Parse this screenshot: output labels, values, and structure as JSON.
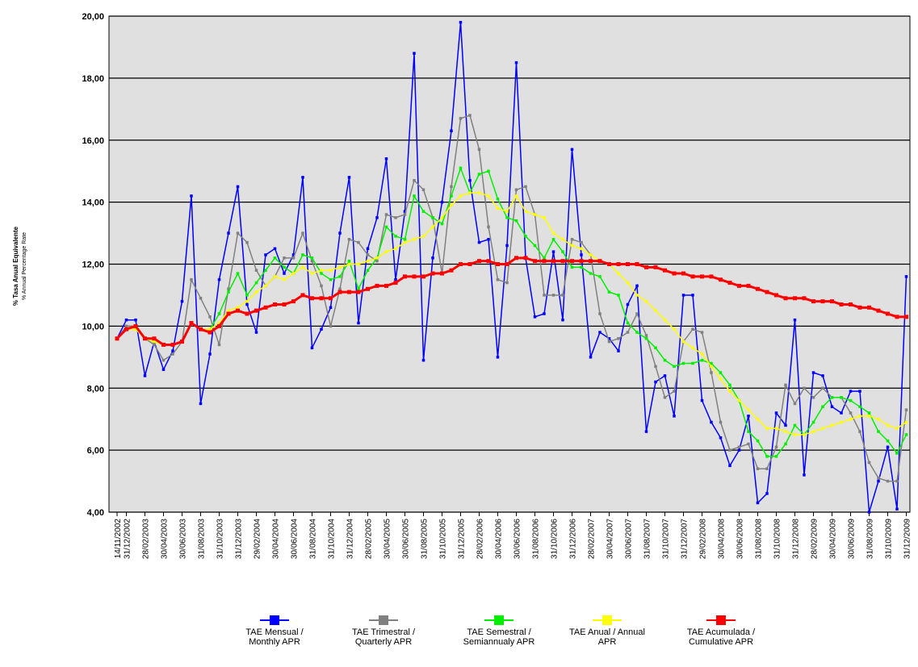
{
  "chart_data": {
    "type": "line",
    "y_label": [
      "% Tasa Anual Equivalente",
      "% Annual Percentage Rate"
    ],
    "categories": [
      "14/11/2002",
      "31/12/2002",
      null,
      "28/02/2003",
      null,
      "30/04/2003",
      null,
      "30/06/2003",
      null,
      "31/08/2003",
      null,
      "31/10/2003",
      null,
      "31/12/2003",
      null,
      "29/02/2004",
      null,
      "30/04/2004",
      null,
      "30/06/2004",
      null,
      "31/08/2004",
      null,
      "31/10/2004",
      null,
      "31/12/2004",
      null,
      "28/02/2005",
      null,
      "30/04/2005",
      null,
      "30/06/2005",
      null,
      "31/08/2005",
      null,
      "31/10/2005",
      null,
      "31/12/2005",
      null,
      "28/02/2006",
      null,
      "30/04/2006",
      null,
      "30/06/2006",
      null,
      "31/08/2006",
      null,
      "31/10/2006",
      null,
      "31/12/2006",
      null,
      "28/02/2007",
      null,
      "30/04/2007",
      null,
      "30/06/2007",
      null,
      "31/08/2007",
      null,
      "31/10/2007",
      null,
      "31/12/2007",
      null,
      "29/02/2008",
      null,
      "30/04/2008",
      null,
      "30/06/2008",
      null,
      "31/08/2008",
      null,
      "31/10/2008",
      null,
      "31/12/2008",
      null,
      "28/02/2009",
      null,
      "30/04/2009",
      null,
      "30/06/2009",
      null,
      "31/08/2009",
      null,
      "31/10/2009",
      null,
      "31/12/2009"
    ],
    "ylim": [
      4,
      20
    ],
    "yticks": [
      {
        "value": 4,
        "label": "4,00"
      },
      {
        "value": 6,
        "label": "6,00"
      },
      {
        "value": 8,
        "label": "8,00"
      },
      {
        "value": 10,
        "label": "10,00"
      },
      {
        "value": 12,
        "label": "12,00"
      },
      {
        "value": 14,
        "label": "14,00"
      },
      {
        "value": 16,
        "label": "16,00"
      },
      {
        "value": 18,
        "label": "18,00"
      },
      {
        "value": 20,
        "label": "20,00"
      }
    ],
    "grid": true,
    "series": [
      {
        "name": "TAE Mensual / Monthly APR",
        "color": "#0000ff",
        "values": [
          9.6,
          10.2,
          10.2,
          8.4,
          9.5,
          8.6,
          9.2,
          10.8,
          14.2,
          7.5,
          9.1,
          11.5,
          13.0,
          14.5,
          10.7,
          9.8,
          12.3,
          12.5,
          11.7,
          12.3,
          14.8,
          9.3,
          9.9,
          10.6,
          13.0,
          14.8,
          10.1,
          12.5,
          13.5,
          15.4,
          11.5,
          13.7,
          18.8,
          8.9,
          12.2,
          14.0,
          16.3,
          19.8,
          14.7,
          12.7,
          12.8,
          9.0,
          12.6,
          18.5,
          12.2,
          10.3,
          10.4,
          12.4,
          10.2,
          15.7,
          12.3,
          9.0,
          9.8,
          9.6,
          9.2,
          10.7,
          11.3,
          6.6,
          8.2,
          8.4,
          7.1,
          11.0,
          11.0,
          7.6,
          6.9,
          6.4,
          5.5,
          6.0,
          7.1,
          4.3,
          4.6,
          7.2,
          6.8,
          10.2,
          5.2,
          8.5,
          8.4,
          7.4,
          7.2,
          7.9,
          7.9,
          4.0,
          5.0,
          6.1,
          4.1,
          11.6
        ]
      },
      {
        "name": "TAE Trimestral / Quarterly APR",
        "color": "#808080",
        "values": [
          9.6,
          10.0,
          10.0,
          9.6,
          9.4,
          8.9,
          9.1,
          9.5,
          11.5,
          10.9,
          10.3,
          9.4,
          11.2,
          13.0,
          12.7,
          11.8,
          11.3,
          11.6,
          12.2,
          12.2,
          13.0,
          12.1,
          11.3,
          10.0,
          11.2,
          12.8,
          12.7,
          12.3,
          12.1,
          13.6,
          13.5,
          13.6,
          14.7,
          14.4,
          13.5,
          11.7,
          14.5,
          16.7,
          16.8,
          15.7,
          13.2,
          11.5,
          11.4,
          14.4,
          14.5,
          13.6,
          11.0,
          11.0,
          11.0,
          12.8,
          12.7,
          12.3,
          10.4,
          9.5,
          9.6,
          9.8,
          10.4,
          9.7,
          8.7,
          7.7,
          7.9,
          9.5,
          9.9,
          9.8,
          8.5,
          6.9,
          6.0,
          6.1,
          6.2,
          5.4,
          5.4,
          6.1,
          8.1,
          7.5,
          8.0,
          7.7,
          8.0,
          7.7,
          7.7,
          7.2,
          6.6,
          5.6,
          5.1,
          5.0,
          5.0,
          7.3
        ]
      },
      {
        "name": "TAE Semestral / Semiannualy APR",
        "color": "#00ee00",
        "values": [
          9.6,
          9.9,
          9.9,
          9.6,
          9.5,
          9.4,
          9.4,
          9.5,
          10.1,
          9.9,
          9.9,
          10.4,
          11.1,
          11.7,
          11.0,
          11.4,
          11.8,
          12.2,
          11.9,
          11.7,
          12.3,
          12.2,
          11.7,
          11.5,
          11.6,
          12.1,
          11.2,
          11.8,
          12.2,
          13.2,
          12.9,
          12.8,
          14.2,
          13.7,
          13.5,
          13.3,
          14.2,
          15.1,
          14.3,
          14.9,
          15.0,
          14.1,
          13.5,
          13.4,
          12.9,
          12.6,
          12.2,
          12.8,
          12.4,
          11.9,
          11.9,
          11.7,
          11.6,
          11.1,
          11.0,
          10.1,
          9.8,
          9.6,
          9.3,
          8.9,
          8.7,
          8.8,
          8.8,
          8.9,
          8.8,
          8.5,
          8.1,
          7.6,
          6.6,
          6.3,
          5.8,
          5.8,
          6.2,
          6.8,
          6.5,
          6.9,
          7.4,
          7.7,
          7.7,
          7.6,
          7.4,
          7.2,
          6.6,
          6.3,
          5.9,
          6.5
        ]
      },
      {
        "name": "TAE Anual / Annual APR",
        "color": "#ffff00",
        "values": [
          9.6,
          9.9,
          9.9,
          9.6,
          9.5,
          9.4,
          9.4,
          9.5,
          10.1,
          9.9,
          9.9,
          10.1,
          10.5,
          10.6,
          10.8,
          11.1,
          11.3,
          11.6,
          11.5,
          11.7,
          11.9,
          11.7,
          11.8,
          11.8,
          11.9,
          12.0,
          12.0,
          12.1,
          12.2,
          12.4,
          12.5,
          12.7,
          12.8,
          12.9,
          13.2,
          13.5,
          13.9,
          14.2,
          14.3,
          14.3,
          14.2,
          13.8,
          13.7,
          14.2,
          13.7,
          13.6,
          13.5,
          13.0,
          12.8,
          12.6,
          12.5,
          12.3,
          12.1,
          12.0,
          11.7,
          11.4,
          11.0,
          10.8,
          10.5,
          10.2,
          9.9,
          9.5,
          9.3,
          9.1,
          8.7,
          8.3,
          7.9,
          7.6,
          7.3,
          7.0,
          6.7,
          6.7,
          6.6,
          6.5,
          6.5,
          6.6,
          6.7,
          6.8,
          6.9,
          7.0,
          7.1,
          7.1,
          7.0,
          6.8,
          6.7,
          6.9
        ]
      },
      {
        "name": "TAE Acumulada / Cumulative APR",
        "color": "#ff0000",
        "values": [
          9.6,
          9.9,
          10.0,
          9.6,
          9.6,
          9.4,
          9.4,
          9.5,
          10.1,
          9.9,
          9.8,
          10.0,
          10.4,
          10.5,
          10.4,
          10.5,
          10.6,
          10.7,
          10.7,
          10.8,
          11.0,
          10.9,
          10.9,
          10.9,
          11.1,
          11.1,
          11.1,
          11.2,
          11.3,
          11.3,
          11.4,
          11.6,
          11.6,
          11.6,
          11.7,
          11.7,
          11.8,
          12.0,
          12.0,
          12.1,
          12.1,
          12.0,
          12.0,
          12.2,
          12.2,
          12.1,
          12.1,
          12.1,
          12.1,
          12.1,
          12.1,
          12.1,
          12.1,
          12.0,
          12.0,
          12.0,
          12.0,
          11.9,
          11.9,
          11.8,
          11.7,
          11.7,
          11.6,
          11.6,
          11.6,
          11.5,
          11.4,
          11.3,
          11.3,
          11.2,
          11.1,
          11.0,
          10.9,
          10.9,
          10.9,
          10.8,
          10.8,
          10.8,
          10.7,
          10.7,
          10.6,
          10.6,
          10.5,
          10.4,
          10.3,
          10.3
        ]
      }
    ]
  }
}
